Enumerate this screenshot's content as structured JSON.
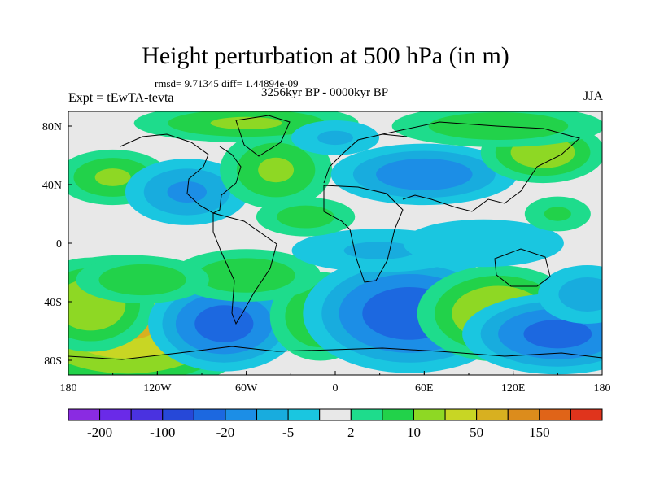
{
  "title": "Height perturbation at 500 hPa (in m)",
  "stats_text": "rmsd= 9.71345 diff= 1.44894e-09",
  "period_text": "3256kyr BP - 0000kyr BP",
  "experiment_text": "Expt = tEwTA-tevta",
  "season_text": "JJA",
  "chart_data": {
    "type": "heatmap",
    "title": "Height perturbation at 500 hPa (in m)",
    "xlabel": "",
    "ylabel": "",
    "xlim": [
      -180,
      180
    ],
    "ylim": [
      -90,
      90
    ],
    "x_ticks": [
      {
        "value": -180,
        "label": "180"
      },
      {
        "value": -120,
        "label": "120W"
      },
      {
        "value": -60,
        "label": "60W"
      },
      {
        "value": 0,
        "label": "0"
      },
      {
        "value": 60,
        "label": "60E"
      },
      {
        "value": 120,
        "label": "120E"
      },
      {
        "value": 180,
        "label": "180"
      }
    ],
    "y_ticks": [
      {
        "value": 80,
        "label": "80N"
      },
      {
        "value": 40,
        "label": "40N"
      },
      {
        "value": 0,
        "label": "0"
      },
      {
        "value": -40,
        "label": "40S"
      },
      {
        "value": -80,
        "label": "80S"
      }
    ],
    "colorbar": {
      "colors": [
        "#8a2be2",
        "#6a2ae8",
        "#4a32e0",
        "#2648d8",
        "#1c68e0",
        "#1c8ee6",
        "#18acde",
        "#1ac6e0",
        "#e8e8e8",
        "#1edc8c",
        "#22d24a",
        "#8ed824",
        "#c8d624",
        "#d8b020",
        "#dc8c1c",
        "#e06418",
        "#e0341c"
      ],
      "labels": [
        "-200",
        "-100",
        "-20",
        "-5",
        "2",
        "10",
        "50",
        "150"
      ],
      "label_boundaries": [
        1,
        3,
        5,
        7,
        9,
        11,
        13,
        15
      ]
    },
    "anomalies": [
      {
        "lon": -140,
        "lat": -55,
        "amp": 60,
        "sx": 35,
        "sy": 18
      },
      {
        "lon": -165,
        "lat": -42,
        "amp": 20,
        "sx": 20,
        "sy": 15
      },
      {
        "lon": -75,
        "lat": -55,
        "amp": -30,
        "sx": 22,
        "sy": 14
      },
      {
        "lon": -10,
        "lat": -50,
        "amp": 12,
        "sx": 18,
        "sy": 16
      },
      {
        "lon": 50,
        "lat": -48,
        "amp": -35,
        "sx": 30,
        "sy": 17
      },
      {
        "lon": 110,
        "lat": -48,
        "amp": 22,
        "sx": 25,
        "sy": 15
      },
      {
        "lon": 150,
        "lat": -62,
        "amp": -28,
        "sx": 28,
        "sy": 12
      },
      {
        "lon": 170,
        "lat": -35,
        "amp": -8,
        "sx": 20,
        "sy": 12
      },
      {
        "lon": -60,
        "lat": -22,
        "amp": 10,
        "sx": 28,
        "sy": 10
      },
      {
        "lon": -130,
        "lat": -25,
        "amp": 10,
        "sx": 25,
        "sy": 9
      },
      {
        "lon": 30,
        "lat": -5,
        "amp": -6,
        "sx": 40,
        "sy": 10
      },
      {
        "lon": 100,
        "lat": 0,
        "amp": -5,
        "sx": 40,
        "sy": 12
      },
      {
        "lon": -150,
        "lat": 45,
        "amp": 12,
        "sx": 20,
        "sy": 10
      },
      {
        "lon": -100,
        "lat": 35,
        "amp": -12,
        "sx": 22,
        "sy": 12
      },
      {
        "lon": -40,
        "lat": 50,
        "amp": 12,
        "sx": 20,
        "sy": 14
      },
      {
        "lon": 60,
        "lat": 47,
        "amp": -18,
        "sx": 30,
        "sy": 10
      },
      {
        "lon": 140,
        "lat": 62,
        "amp": 18,
        "sx": 20,
        "sy": 10
      },
      {
        "lon": 110,
        "lat": 80,
        "amp": 10,
        "sx": 40,
        "sy": 8
      },
      {
        "lon": -60,
        "lat": 82,
        "amp": 12,
        "sx": 40,
        "sy": 7
      },
      {
        "lon": -20,
        "lat": 18,
        "amp": 8,
        "sx": 20,
        "sy": 8
      },
      {
        "lon": 150,
        "lat": 20,
        "amp": 6,
        "sx": 15,
        "sy": 8
      },
      {
        "lon": 0,
        "lat": 72,
        "amp": -6,
        "sx": 20,
        "sy": 8
      }
    ]
  }
}
